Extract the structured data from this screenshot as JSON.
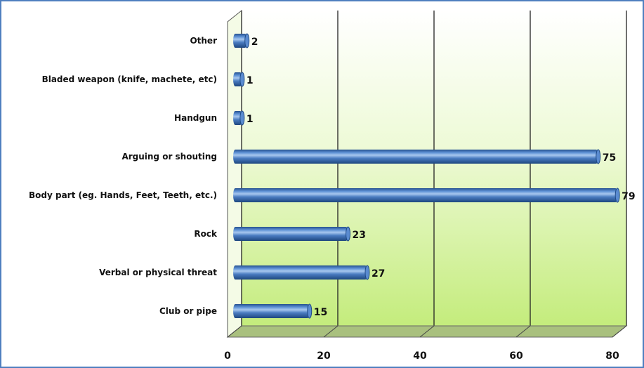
{
  "chart_data": {
    "type": "bar",
    "orientation": "horizontal",
    "title": "",
    "xlabel": "",
    "ylabel": "",
    "categories": [
      "Club or pipe",
      "Verbal or physical threat",
      "Rock",
      "Body part (eg. Hands, Feet, Teeth, etc.)",
      "Arguing or shouting",
      "Handgun",
      "Bladed weapon (knife, machete, etc)",
      "Other"
    ],
    "values": [
      15,
      27,
      23,
      79,
      75,
      1,
      1,
      2
    ],
    "xlim": [
      0,
      80
    ],
    "xticks": [
      0,
      20,
      40,
      60,
      80
    ],
    "grid": true,
    "style": "3d-cylinder",
    "colors": {
      "bar": "#4a7cc1",
      "bar_dark": "#1f4a86",
      "bar_light": "#9ec0ea",
      "wall_light": "#ffffff",
      "wall_dark": "#c4ec7c",
      "floor": "#a9c07e",
      "frame": "#4f7fbf"
    }
  }
}
